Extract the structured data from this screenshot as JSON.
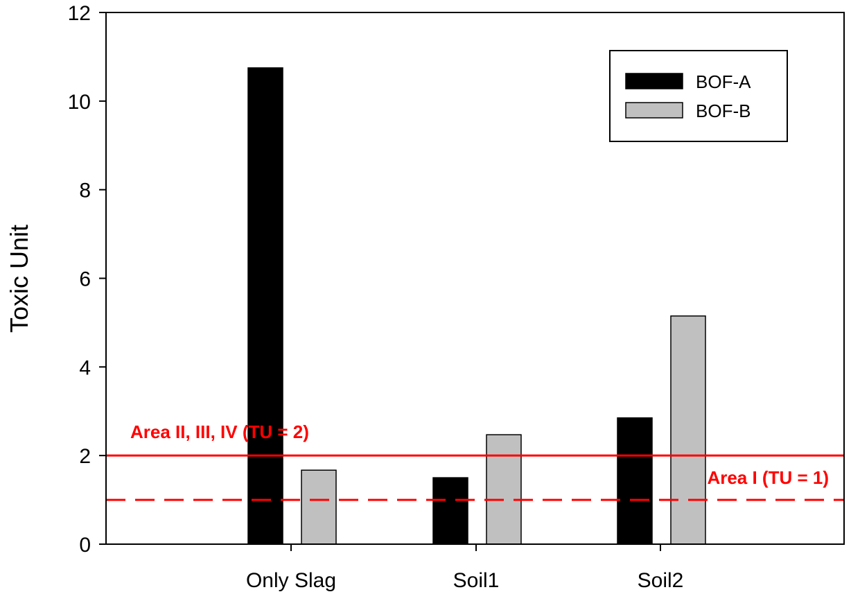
{
  "chart_data": {
    "type": "bar",
    "categories": [
      "Only Slag",
      "Soil1",
      "Soil2"
    ],
    "series": [
      {
        "name": "BOF-A",
        "color": "#000000",
        "values": [
          10.75,
          1.5,
          2.85
        ]
      },
      {
        "name": "BOF-B",
        "color": "#c0c0c0",
        "values": [
          1.67,
          2.47,
          5.15
        ]
      }
    ],
    "xlabel": "",
    "ylabel": "Toxic Unit",
    "ylim": [
      0,
      12
    ],
    "yticks": [
      0,
      2,
      4,
      6,
      8,
      10,
      12
    ],
    "grid": false,
    "legend_position": "top-right",
    "reference_lines": [
      {
        "label": "Area II, III, IV (TU = 2)",
        "value": 2,
        "style": "solid",
        "color": "#ff0000"
      },
      {
        "label": "Area I  (TU = 1)",
        "value": 1,
        "style": "dashed",
        "color": "#ff0000"
      }
    ]
  }
}
